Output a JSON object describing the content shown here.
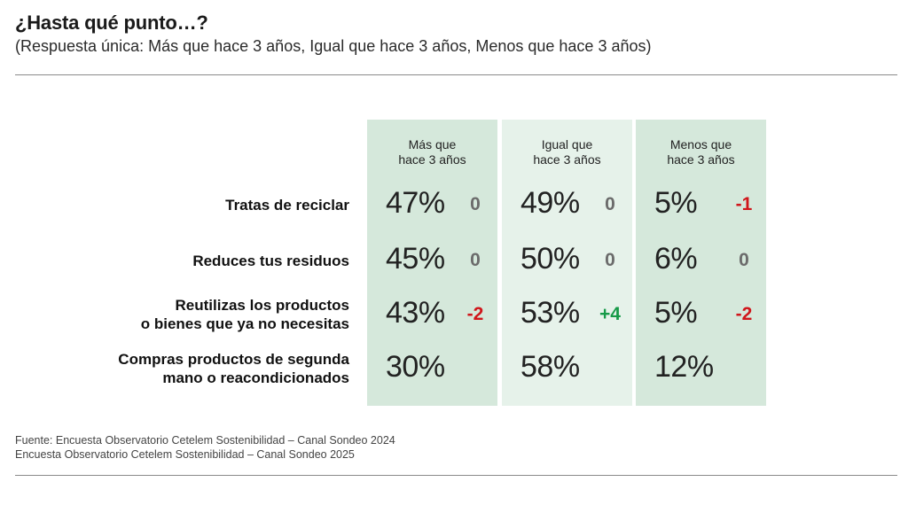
{
  "title": "¿Hasta qué punto…?",
  "subtitle": "(Respuesta única: Más que hace 3 años, Igual que hace 3 años, Menos que hace 3 años)",
  "footer": {
    "line1": "Fuente: Encuesta Observatorio Cetelem Sostenibilidad – Canal Sondeo 2024",
    "line2": "Encuesta Observatorio Cetelem Sostenibilidad – Canal Sondeo 2025"
  },
  "colors": {
    "col_dark": "#d5e8db",
    "col_light": "#e6f2ea",
    "delta_zero": "#6b6b6b",
    "delta_negative": "#d0161b",
    "delta_positive": "#179a48"
  },
  "chart_data": {
    "type": "table",
    "columns": [
      {
        "label": [
          "Más que",
          "hace 3 años"
        ]
      },
      {
        "label": [
          "Igual que",
          "hace 3 años"
        ]
      },
      {
        "label": [
          "Menos que",
          "hace 3 años"
        ]
      }
    ],
    "rows": [
      {
        "label": [
          "Tratas de reciclar"
        ],
        "values": [
          "47%",
          "49%",
          "5%"
        ],
        "deltas": [
          "0",
          "0",
          "-1"
        ]
      },
      {
        "label": [
          "Reduces tus residuos"
        ],
        "values": [
          "45%",
          "50%",
          "6%"
        ],
        "deltas": [
          "0",
          "0",
          "0"
        ]
      },
      {
        "label": [
          "Reutilizas los productos",
          "o bienes que ya no necesitas"
        ],
        "values": [
          "43%",
          "53%",
          "5%"
        ],
        "deltas": [
          "-2",
          "+4",
          "-2"
        ]
      },
      {
        "label": [
          "Compras productos de segunda",
          "mano o reacondicionados"
        ],
        "values": [
          "30%",
          "58%",
          "12%"
        ],
        "deltas": [
          "",
          "",
          ""
        ]
      }
    ]
  }
}
